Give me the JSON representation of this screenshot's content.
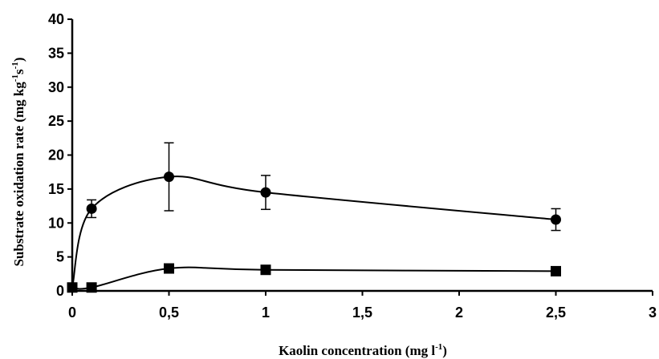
{
  "chart_data": {
    "type": "line",
    "title": "",
    "xlabel": "Kaolin concentration (mg l",
    "xlabel_sup": "-1",
    "xlabel_end": ")",
    "ylabel": "Substrate oxidation rate (mg kg",
    "ylabel_sup1": "-1",
    "ylabel_mid": "s",
    "ylabel_sup2": "-1",
    "ylabel_end": ")",
    "xlim": [
      0,
      3
    ],
    "ylim": [
      0,
      40
    ],
    "x_ticks": [
      0,
      0.5,
      1,
      1.5,
      2,
      2.5,
      3
    ],
    "x_tick_labels": [
      "0",
      "0,5",
      "1",
      "1,5",
      "2",
      "2,5",
      "3"
    ],
    "y_ticks": [
      0,
      5,
      10,
      15,
      20,
      25,
      30,
      35,
      40
    ],
    "y_tick_labels": [
      "0",
      "5",
      "10",
      "15",
      "20",
      "25",
      "30",
      "35",
      "40"
    ],
    "grid": false,
    "legend": "none",
    "series": [
      {
        "marker": "circle",
        "color": "#000000",
        "x": [
          0,
          0.1,
          0.5,
          1,
          2.5
        ],
        "y": [
          0.5,
          12.1,
          16.8,
          14.5,
          10.5
        ],
        "yerr": [
          0.0,
          1.3,
          5.0,
          2.5,
          1.6
        ]
      },
      {
        "marker": "square",
        "color": "#000000",
        "x": [
          0,
          0.1,
          0.5,
          1,
          2.5
        ],
        "y": [
          0.5,
          0.5,
          3.3,
          3.1,
          2.9
        ],
        "yerr": [
          0,
          0,
          0,
          0,
          0
        ]
      }
    ]
  }
}
